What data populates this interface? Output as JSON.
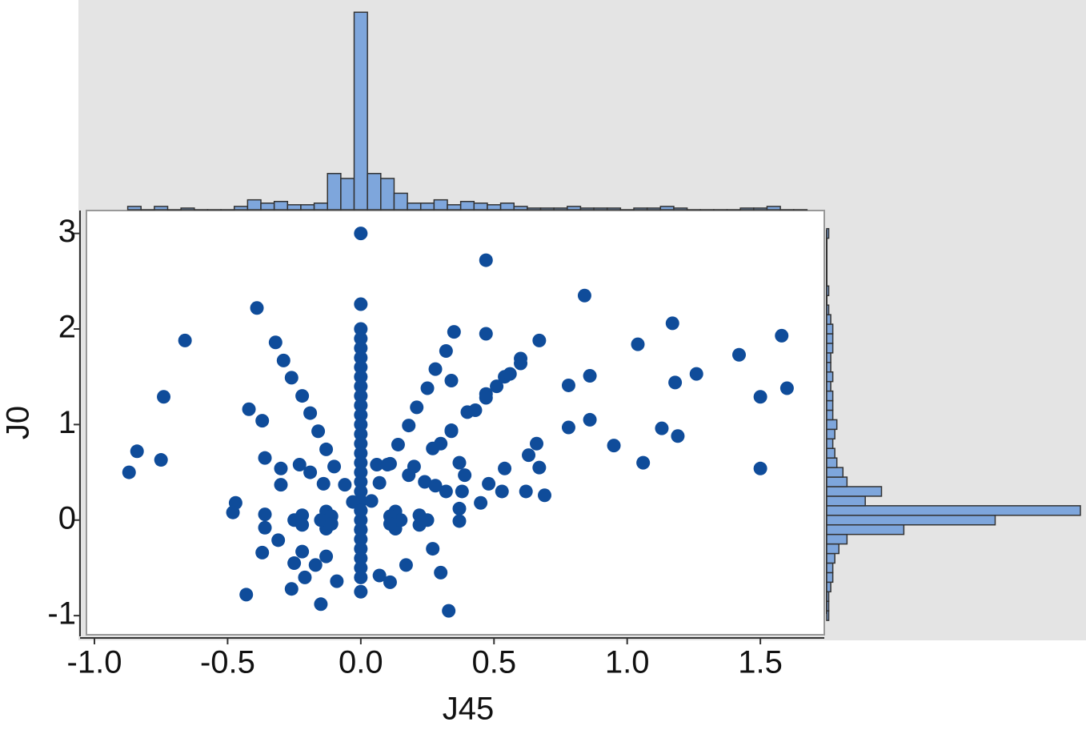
{
  "chart_data": {
    "type": "scatter",
    "xlabel": "J45",
    "ylabel": "J0",
    "color": "#0f4c9a",
    "xlim": [
      -1.03,
      1.74
    ],
    "ylim": [
      -1.2,
      3.24
    ],
    "xticks": [
      {
        "value": -1,
        "label": "-1.0"
      },
      {
        "value": -0.5,
        "label": "-0.5"
      },
      {
        "value": 0,
        "label": "0.0"
      },
      {
        "value": 0.5,
        "label": "0.5"
      },
      {
        "value": 1,
        "label": "1.0"
      },
      {
        "value": 1.5,
        "label": "1.5"
      }
    ],
    "yticks": [
      -1,
      0,
      1,
      2,
      3
    ],
    "x": [
      0,
      0,
      0,
      0,
      0,
      0,
      0,
      0,
      0,
      0,
      0,
      0,
      0,
      0,
      0,
      0,
      0,
      0,
      0,
      0,
      0,
      0,
      0,
      0,
      0,
      0,
      0,
      0,
      0,
      0,
      0.04,
      0.07,
      0.11,
      0.14,
      0.18,
      0.21,
      0.25,
      0.28,
      0.32,
      0.35,
      -0.03,
      -0.06,
      -0.1,
      -0.13,
      -0.16,
      -0.19,
      -0.22,
      -0.26,
      -0.29,
      -0.32,
      0.2,
      0.27,
      0.34,
      0.4,
      0.47,
      0.54,
      0.6,
      0.67,
      0.25,
      0.22,
      0.13,
      0,
      -0.13,
      -0.22,
      -0.25,
      -0.22,
      -0.13,
      0,
      0.13,
      0.22,
      0.15,
      0.11,
      -0.11,
      -0.15,
      -0.11,
      0.11,
      -0.87,
      -0.84,
      -0.75,
      -0.74,
      -0.66,
      -0.39,
      -0.42,
      -0.37,
      -0.36,
      -0.3,
      -0.3,
      -0.23,
      -0.19,
      -0.14,
      -0.47,
      -0.48,
      -0.36,
      -0.36,
      -0.37,
      -0.31,
      -0.43,
      -0.26,
      -0.21,
      -0.17,
      -0.25,
      -0.15,
      -0.09,
      -0.13,
      -0.22,
      0.06,
      0.1,
      0.18,
      0.24,
      0.28,
      0.32,
      0.27,
      0.17,
      0.11,
      0.07,
      0.3,
      0.33,
      0.34,
      0.3,
      0.37,
      0.39,
      0.38,
      0.37,
      0.37,
      0.45,
      0.48,
      0.54,
      0.53,
      0.62,
      0.63,
      0.66,
      0.67,
      0.69,
      0.34,
      0.47,
      0.47,
      0.43,
      0.47,
      0.51,
      0.56,
      0.6,
      0.78,
      0.86,
      0.78,
      0.86,
      0.84,
      0.95,
      1.04,
      1.06,
      1.13,
      1.17,
      1.19,
      1.18,
      1.26,
      1.42,
      1.5,
      1.5,
      1.58,
      1.6
    ],
    "values": [
      3,
      2.26,
      2,
      1.9,
      1.8,
      1.7,
      1.6,
      1.5,
      1.4,
      1.3,
      1.2,
      1.1,
      1,
      0.9,
      0.8,
      0.7,
      0.6,
      0.5,
      0.4,
      0.3,
      0.2,
      0.1,
      0,
      -0.1,
      -0.2,
      -0.3,
      -0.4,
      -0.5,
      -0.6,
      -0.75,
      0.2,
      0.39,
      0.59,
      0.79,
      0.99,
      1.18,
      1.38,
      1.58,
      1.77,
      1.97,
      0.19,
      0.37,
      0.56,
      0.74,
      0.93,
      1.12,
      1.3,
      1.49,
      1.67,
      1.86,
      0.56,
      0.75,
      0.94,
      1.13,
      1.32,
      1.5,
      1.69,
      1.88,
      0,
      0.05,
      0.09,
      0.1,
      0.09,
      0.05,
      0,
      -0.05,
      -0.09,
      -0.1,
      -0.09,
      -0.05,
      0,
      0.04,
      0.04,
      0,
      -0.04,
      -0.04,
      0.5,
      0.72,
      0.63,
      1.29,
      1.88,
      2.22,
      1.16,
      1.04,
      0.65,
      0.54,
      0.37,
      0.58,
      0.5,
      0.38,
      0.18,
      0.08,
      0.06,
      -0.08,
      -0.34,
      -0.21,
      -0.78,
      -0.72,
      -0.6,
      -0.47,
      -0.45,
      -0.88,
      -0.64,
      -0.38,
      -0.33,
      0.58,
      0.58,
      0.47,
      0.4,
      0.36,
      0.3,
      -0.3,
      -0.47,
      -0.65,
      -0.58,
      -0.55,
      -0.95,
      0.93,
      0.8,
      0.6,
      0.47,
      0.3,
      0.12,
      -0.01,
      0.18,
      0.38,
      0.54,
      0.3,
      0.3,
      0.68,
      0.8,
      0.55,
      0.26,
      1.46,
      1.95,
      2.72,
      1.15,
      1.28,
      1.4,
      1.53,
      1.64,
      1.41,
      1.51,
      0.97,
      1.05,
      2.35,
      0.78,
      1.84,
      0.6,
      0.96,
      2.06,
      0.88,
      1.44,
      1.53,
      1.73,
      1.29,
      0.54,
      1.93,
      1.38
    ],
    "x_histogram": {
      "color": "#7ea6dc",
      "ylim": [
        0,
        125
      ],
      "bins": [
        -0.875,
        -0.825,
        -0.775,
        -0.725,
        -0.675,
        -0.625,
        -0.575,
        -0.525,
        -0.475,
        -0.425,
        -0.375,
        -0.325,
        -0.275,
        -0.225,
        -0.175,
        -0.125,
        -0.075,
        -0.025,
        0.025,
        0.075,
        0.125,
        0.175,
        0.225,
        0.275,
        0.325,
        0.375,
        0.425,
        0.475,
        0.525,
        0.575,
        0.625,
        0.675,
        0.725,
        0.775,
        0.825,
        0.875,
        0.925,
        0.975,
        1.025,
        1.075,
        1.125,
        1.175,
        1.225,
        1.275,
        1.325,
        1.375,
        1.425,
        1.475,
        1.525,
        1.575,
        1.625,
        1.675
      ],
      "counts": [
        2,
        0,
        2,
        0,
        1,
        0,
        0,
        0,
        2,
        6,
        4,
        5,
        3,
        3,
        4,
        22,
        19,
        120,
        22,
        19,
        10,
        4,
        4,
        6,
        3,
        5,
        4,
        3,
        4,
        2,
        1,
        1,
        1,
        2,
        1,
        1,
        1,
        0,
        1,
        1,
        2,
        1,
        0,
        0,
        0,
        0,
        1,
        1,
        2,
        0,
        0
      ]
    },
    "y_histogram": {
      "color": "#7ea6dc",
      "xlim": [
        0,
        125
      ],
      "bins": [
        -1.05,
        -0.95,
        -0.85,
        -0.75,
        -0.65,
        -0.55,
        -0.45,
        -0.35,
        -0.25,
        -0.15,
        -0.05,
        0.05,
        0.15,
        0.25,
        0.35,
        0.45,
        0.55,
        0.65,
        0.75,
        0.85,
        0.95,
        1.05,
        1.15,
        1.25,
        1.35,
        1.45,
        1.55,
        1.65,
        1.75,
        1.85,
        1.95,
        2.05,
        2.15,
        2.25,
        2.35,
        2.45,
        2.55,
        2.65,
        2.75,
        2.85,
        2.95,
        3.05
      ],
      "counts": [
        1,
        1,
        1,
        2,
        3,
        3,
        4,
        6,
        10,
        38,
        83,
        125,
        19,
        27,
        10,
        8,
        5,
        4,
        3,
        4,
        5,
        3,
        3,
        3,
        2,
        3,
        2,
        2,
        3,
        3,
        3,
        2,
        1,
        0,
        1,
        0,
        0,
        0,
        0,
        0,
        1
      ]
    }
  }
}
